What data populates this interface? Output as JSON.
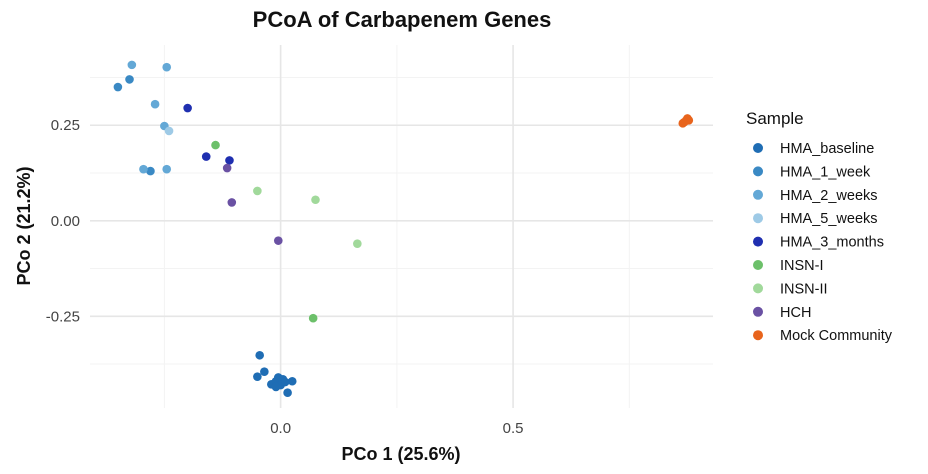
{
  "chart_data": {
    "type": "scatter",
    "title": "PCoA of Carbapenem Genes",
    "xlabel": "PCo 1 (25.6%)",
    "ylabel": "PCo 2 (21.2%)",
    "xlim": [
      -0.41,
      0.93
    ],
    "ylim": [
      -0.49,
      0.46
    ],
    "x_ticks": [
      0.0,
      0.5
    ],
    "x_tick_labels": [
      "0.0",
      "0.5"
    ],
    "y_ticks": [
      -0.25,
      0.0,
      0.25
    ],
    "y_tick_labels": [
      "-0.25",
      "0.00",
      "0.25"
    ],
    "grid": true,
    "legend_title": "Sample",
    "legend_position": "right",
    "series": [
      {
        "name": "HMA_baseline",
        "color": "#1f6db4",
        "points": [
          [
            -0.045,
            -0.352
          ],
          [
            -0.05,
            -0.408
          ],
          [
            -0.035,
            -0.395
          ],
          [
            -0.02,
            -0.428
          ],
          [
            -0.01,
            -0.42
          ],
          [
            -0.005,
            -0.41
          ],
          [
            0.005,
            -0.415
          ],
          [
            0.0,
            -0.43
          ],
          [
            0.01,
            -0.422
          ],
          [
            0.015,
            -0.45
          ],
          [
            0.025,
            -0.42
          ],
          [
            -0.01,
            -0.435
          ]
        ]
      },
      {
        "name": "HMA_1_week",
        "color": "#3a89c4",
        "points": [
          [
            -0.35,
            0.35
          ],
          [
            -0.325,
            0.37
          ],
          [
            -0.28,
            0.13
          ]
        ]
      },
      {
        "name": "HMA_2_weeks",
        "color": "#63a8d6",
        "points": [
          [
            -0.32,
            0.408
          ],
          [
            -0.245,
            0.402
          ],
          [
            -0.27,
            0.305
          ],
          [
            -0.25,
            0.248
          ],
          [
            -0.295,
            0.135
          ],
          [
            -0.245,
            0.135
          ]
        ]
      },
      {
        "name": "HMA_5_weeks",
        "color": "#9ecae6",
        "points": [
          [
            -0.24,
            0.235
          ]
        ]
      },
      {
        "name": "HMA_3_months",
        "color": "#1f2fb0",
        "points": [
          [
            -0.2,
            0.295
          ],
          [
            -0.16,
            0.168
          ],
          [
            -0.11,
            0.158
          ]
        ]
      },
      {
        "name": "INSN-I",
        "color": "#6cc06a",
        "points": [
          [
            -0.14,
            0.198
          ],
          [
            0.07,
            -0.255
          ]
        ]
      },
      {
        "name": "INSN-II",
        "color": "#a1d99b",
        "points": [
          [
            -0.05,
            0.078
          ],
          [
            0.075,
            0.055
          ],
          [
            0.165,
            -0.06
          ]
        ]
      },
      {
        "name": "HCH",
        "color": "#6a51a3",
        "points": [
          [
            -0.115,
            0.138
          ],
          [
            -0.105,
            0.048
          ],
          [
            -0.005,
            -0.052
          ]
        ]
      },
      {
        "name": "Mock Community",
        "color": "#e8641c",
        "points": [
          [
            0.865,
            0.255
          ],
          [
            0.872,
            0.262
          ],
          [
            0.875,
            0.268
          ],
          [
            0.878,
            0.263
          ],
          [
            0.868,
            0.258
          ]
        ]
      }
    ]
  }
}
